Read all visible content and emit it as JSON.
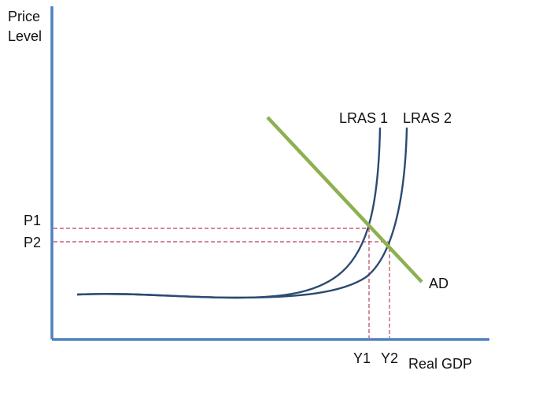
{
  "diagram": {
    "y_axis_label_line1": "Price",
    "y_axis_label_line2": "Level",
    "x_axis_label": "Real GDP",
    "curves": {
      "lras1": "LRAS 1",
      "lras2": "LRAS 2",
      "ad": "AD"
    },
    "price_levels": {
      "p1": "P1",
      "p2": "P2"
    },
    "output_levels": {
      "y1": "Y1",
      "y2": "Y2"
    },
    "colors": {
      "axis": "#4f81bd",
      "supply_curve": "#2c4a72",
      "demand_curve": "#8db050",
      "guide_lines": "#b5455a"
    }
  }
}
